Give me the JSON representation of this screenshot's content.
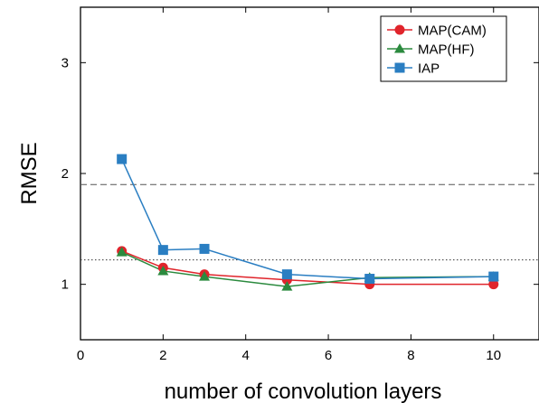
{
  "chart_data": {
    "type": "line",
    "title": "",
    "xlabel": "number of convolution layers",
    "ylabel": "RMSE",
    "xlim": [
      0,
      11.1
    ],
    "ylim": [
      0.5,
      3.5
    ],
    "x_ticks": [
      0,
      2,
      4,
      6,
      8,
      10
    ],
    "y_ticks": [
      1,
      2,
      3
    ],
    "grid": false,
    "legend_position": "top-right",
    "reference_lines": [
      {
        "name": "dashed",
        "y": 1.9,
        "style": "dashed",
        "color": "#555555"
      },
      {
        "name": "dotted",
        "y": 1.22,
        "style": "dotted",
        "color": "#333333"
      }
    ],
    "series": [
      {
        "name": "MAP(CAM)",
        "color": "#e0242b",
        "marker": "circle",
        "x": [
          1,
          2,
          3,
          5,
          7,
          10
        ],
        "y": [
          1.3,
          1.15,
          1.09,
          1.04,
          1.0,
          1.0
        ]
      },
      {
        "name": "MAP(HF)",
        "color": "#2b8a3e",
        "marker": "triangle",
        "x": [
          1,
          2,
          3,
          5,
          7,
          10
        ],
        "y": [
          1.29,
          1.12,
          1.07,
          0.98,
          1.06,
          1.07
        ]
      },
      {
        "name": "IAP",
        "color": "#2a7ec2",
        "marker": "square",
        "x": [
          1,
          2,
          3,
          5,
          7,
          10
        ],
        "y": [
          2.13,
          1.31,
          1.32,
          1.09,
          1.05,
          1.07
        ]
      }
    ]
  }
}
